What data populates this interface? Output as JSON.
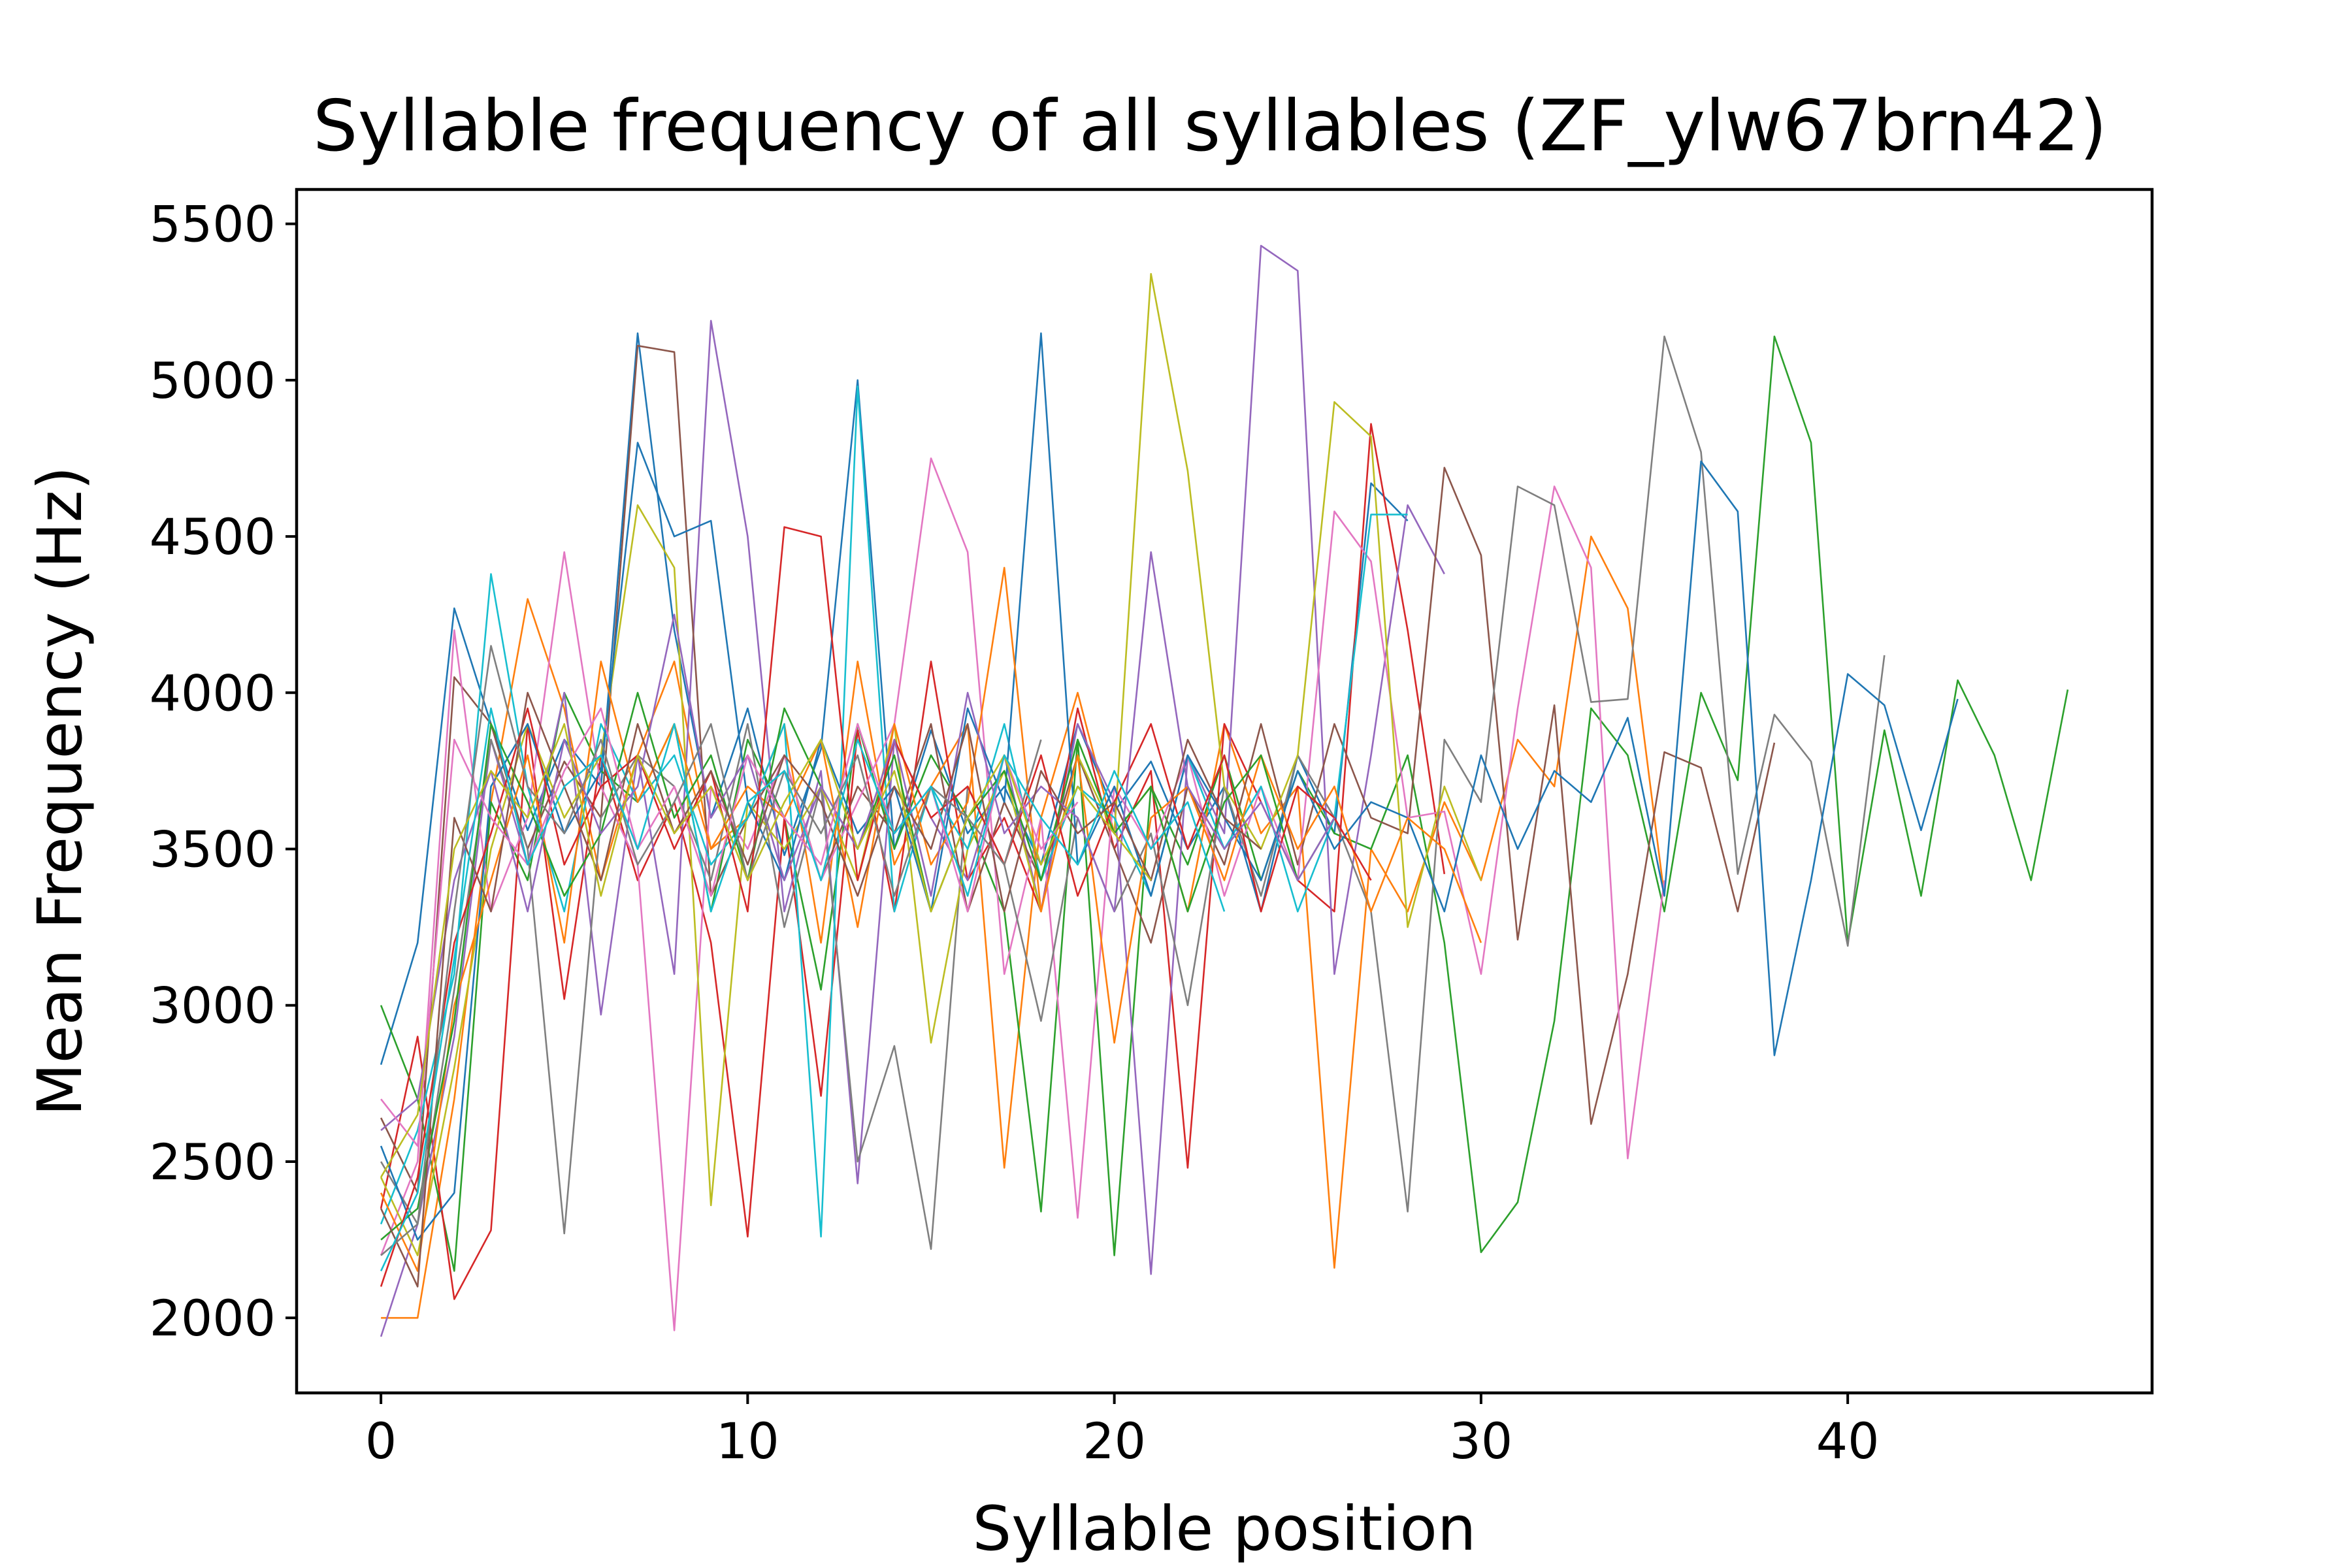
{
  "chart_data": {
    "type": "line",
    "title": "Syllable frequency of all syllables (ZF_ylw67brn42)",
    "xlabel": "Syllable position",
    "ylabel": "Mean Frequency (Hz)",
    "xlim": [
      -2.3,
      48.3
    ],
    "ylim": [
      1760,
      5610
    ],
    "xticks": [
      0,
      10,
      20,
      30,
      40
    ],
    "yticks": [
      2000,
      2500,
      3000,
      3500,
      4000,
      4500,
      5000,
      5500
    ],
    "grid": false,
    "legend": "none",
    "palette": [
      "#1f77b4",
      "#ff7f0e",
      "#2ca02c",
      "#d62728",
      "#9467bd",
      "#8c564b",
      "#e377c2",
      "#7f7f7f",
      "#bcbd22",
      "#17becf"
    ],
    "series": [
      {
        "values": [
          2810,
          3200,
          4270,
          3900,
          3560,
          3850,
          3700,
          5150,
          4200,
          3600,
          3950,
          3480,
          3820,
          5000,
          3500,
          3880,
          3550,
          3700,
          3450,
          3900,
          3620,
          3780,
          3500,
          3700,
          3300,
          3800,
          3550,
          4670,
          4550
        ]
      },
      {
        "values": [
          2000,
          2000,
          2700,
          3650,
          4300,
          3950,
          3400,
          3800,
          4100,
          3500,
          3600,
          3900,
          3200,
          4100,
          3450,
          3700,
          3900,
          2480,
          3600,
          4000,
          3550,
          3700,
          3300,
          3900,
          3550,
          3700,
          2160,
          3500,
          3300,
          3650,
          3400,
          3850,
          3700,
          4500,
          4270,
          3350
        ]
      },
      {
        "values": [
          3000,
          2700,
          2150,
          3650,
          3400,
          4000,
          3750,
          3650,
          3900,
          3300,
          3850,
          3600,
          3050,
          3900,
          3500,
          3800,
          3600,
          3300,
          2340,
          3850,
          2200,
          3700,
          3450,
          3800,
          3400,
          3750,
          3550,
          3500,
          3800,
          3200,
          2210,
          2370,
          2950,
          3950,
          3800,
          3300,
          4000,
          3720,
          5140,
          4800,
          3200,
          3880,
          3350,
          4040,
          3800,
          3400,
          4010
        ]
      },
      {
        "values": [
          2350,
          2900,
          2060,
          2280,
          3900,
          3020,
          3800,
          3400,
          3650,
          3200,
          2260,
          3600,
          2710,
          3880,
          3300,
          4100,
          3400,
          3600,
          3300,
          3950,
          3500,
          3750,
          2480,
          3900,
          3650,
          3400,
          3300,
          4860,
          4200,
          3420
        ]
      },
      {
        "values": [
          1940,
          2300,
          2900,
          3850,
          3450,
          4000,
          2970,
          3800,
          3100,
          5190,
          4500,
          3300,
          3750,
          2430,
          3850,
          3600,
          3400,
          3800,
          3300,
          3900,
          3650,
          2140,
          3800,
          3550,
          5430,
          5350,
          3100,
          3800,
          4600,
          4380
        ]
      },
      {
        "values": [
          2640,
          2400,
          4050,
          3900,
          3500,
          3780,
          3600,
          5110,
          5090,
          3350,
          3600,
          3800,
          3400,
          3700,
          3550,
          3900,
          3300,
          3650,
          3400,
          3800,
          3500,
          3200,
          3700,
          3450,
          3900,
          3450,
          3900,
          3600,
          3550,
          4720,
          4440,
          3210,
          3960,
          2620,
          3100,
          3810,
          3760,
          3300,
          3840
        ]
      },
      {
        "values": [
          2200,
          2500,
          4200,
          3300,
          3600,
          4450,
          3700,
          3450,
          1960,
          3700,
          3500,
          3800,
          3400,
          3650,
          3900,
          4750,
          4450,
          3100,
          3600,
          2320,
          3700,
          3500,
          3800,
          3350,
          3700,
          3400,
          4580,
          4420,
          3600,
          3620,
          3100,
          3950,
          4660,
          4400,
          2510,
          3400
        ]
      },
      {
        "values": [
          2500,
          2300,
          3050,
          3850,
          3500,
          2270,
          3600,
          3800,
          3700,
          3400,
          3900,
          3250,
          3700,
          2500,
          2870,
          2220,
          3700,
          3450,
          2950,
          3600,
          3300,
          3550,
          3000,
          3700,
          3350,
          3800,
          3600,
          3300,
          2340,
          3850,
          3650,
          4660,
          4600,
          3970,
          3980,
          5140,
          4770,
          3420,
          3930,
          3780,
          3190,
          4120
        ]
      },
      {
        "values": [
          2450,
          2200,
          2800,
          3500,
          3900,
          3600,
          3800,
          4600,
          4400,
          2360,
          3650,
          3500,
          3700,
          3400,
          3900,
          2880,
          3500,
          3750,
          3300,
          3800,
          3550,
          5340,
          4710,
          3700,
          3500,
          3800,
          4930,
          4820,
          3250,
          3700,
          3400
        ]
      },
      {
        "values": [
          2300,
          2600,
          3100,
          4380,
          3700,
          3300,
          3900,
          3650,
          3800,
          3450,
          3600,
          3900,
          2260,
          4980,
          3300,
          3700,
          3500,
          3900,
          3400,
          3700,
          3600,
          3350,
          3800,
          3500,
          3700,
          3300,
          3600,
          4570,
          4570
        ]
      },
      {
        "values": [
          2550,
          2250,
          2400,
          3700,
          3900,
          3550,
          3750,
          4800,
          4500,
          4550,
          3650,
          3400,
          3850,
          3550,
          3700,
          3300,
          3950,
          3650,
          5150,
          3450,
          3700,
          3350,
          3800,
          3600,
          3400,
          3750,
          3500,
          3650,
          3600,
          3300,
          3800,
          3500,
          3750,
          3650,
          3920,
          3350,
          4740,
          4580,
          2840,
          3400,
          4060,
          3960,
          3560,
          3980
        ]
      },
      {
        "values": [
          2400,
          2150,
          3000,
          3400,
          3800,
          3200,
          4100,
          3650,
          3900,
          3500,
          3700,
          3600,
          3850,
          3250,
          3900,
          3450,
          3650,
          4400,
          3300,
          3800,
          2880,
          3600,
          3700,
          3400,
          3800,
          3500,
          3700,
          3300,
          3600,
          3500,
          3200
        ]
      },
      {
        "values": [
          2250,
          2350,
          2950,
          3900,
          3650,
          3350,
          3550,
          4000,
          3600,
          3800,
          3400,
          3950,
          3700,
          3500,
          3800,
          3300,
          3600,
          3750,
          3400,
          3850,
          3550,
          3700,
          3300,
          3650,
          3800,
          3400,
          3600
        ]
      },
      {
        "values": [
          2100,
          2450,
          3200,
          3550,
          3950,
          3450,
          3700,
          3800,
          3500,
          3750,
          3300,
          4530,
          4500,
          3400,
          3850,
          3600,
          3700,
          3450,
          3800,
          3350,
          3650,
          3900,
          3500,
          3800,
          3300,
          3700,
          3600,
          3400
        ]
      },
      {
        "values": [
          2600,
          2700,
          3400,
          3750,
          3300,
          3850,
          3550,
          3700,
          4250,
          3600,
          3800,
          3400,
          3700,
          3500,
          3850,
          3350,
          4000,
          3550,
          3700,
          3600,
          3300,
          4450,
          3700,
          3500,
          3650,
          3400,
          3600
        ]
      },
      {
        "values": [
          2350,
          2100,
          3600,
          3300,
          4000,
          3700,
          3400,
          3900,
          3550,
          3750,
          3450,
          3800,
          3650,
          3350,
          3700,
          3500,
          3900,
          3300,
          3750,
          3550,
          3650,
          3400,
          3850,
          3600,
          3500
        ]
      },
      {
        "values": [
          2700,
          2550,
          3850,
          3600,
          3450,
          3750,
          3950,
          3500,
          3700,
          3350,
          3800,
          3600,
          3450,
          3900,
          3550,
          3700,
          3300,
          3800,
          3500,
          3650
        ]
      },
      {
        "values": [
          2200,
          2300,
          3300,
          4150,
          3700,
          3550,
          3850,
          3450,
          3650,
          3900,
          3400,
          3750,
          3550,
          3800,
          3350,
          3700,
          3600,
          3450,
          3850
        ]
      },
      {
        "values": [
          2450,
          2650,
          3500,
          3750,
          3600,
          3900,
          3350,
          3800,
          3550,
          3700,
          3400,
          3650,
          3850,
          3500,
          3750,
          3300,
          3600,
          3800,
          3450,
          3700,
          3550,
          3400
        ]
      },
      {
        "values": [
          2150,
          2400,
          3150,
          3950,
          3450,
          3700,
          3800,
          3500,
          3900,
          3300,
          3650,
          3750,
          3400,
          3850,
          3550,
          3700,
          3350,
          3800,
          3600,
          3450,
          3750,
          3500,
          3650,
          3300
        ]
      }
    ]
  }
}
